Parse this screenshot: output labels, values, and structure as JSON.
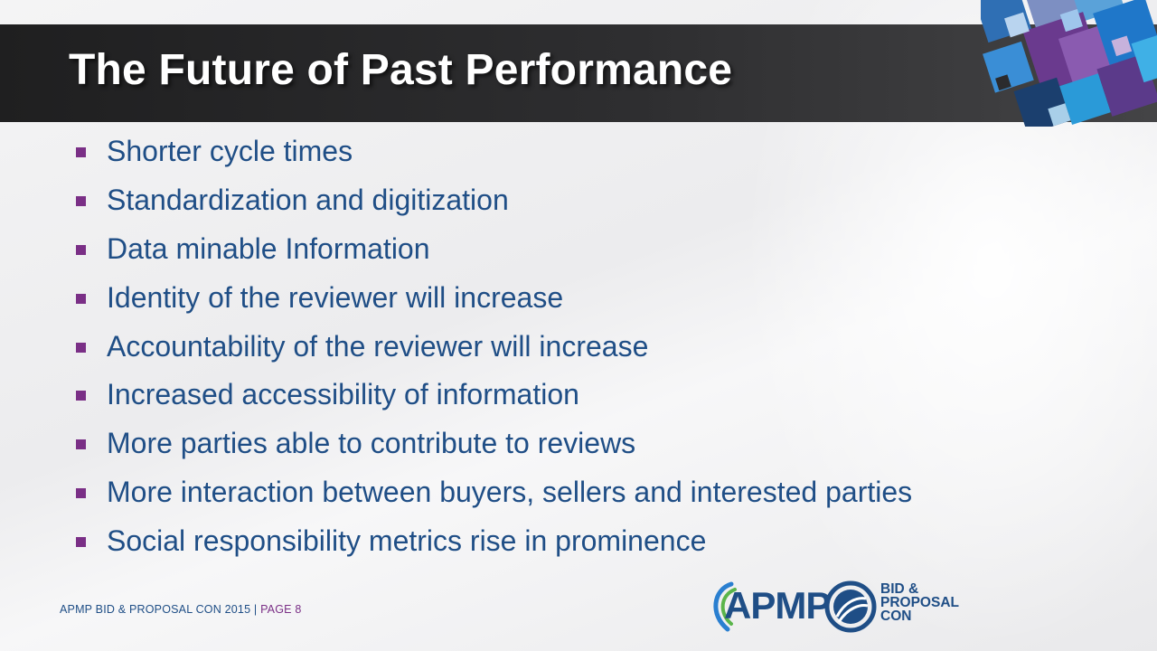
{
  "slide": {
    "title": "The Future of Past Performance",
    "bullets": [
      "Shorter cycle times",
      "Standardization and digitization",
      "Data minable Information",
      "Identity of the reviewer will increase",
      "Accountability of the reviewer will increase",
      "Increased accessibility of information",
      "More parties able to contribute to reviews",
      "More interaction between buyers, sellers and interested parties",
      "Social responsibility metrics rise in prominence"
    ]
  },
  "footer": {
    "event": "APMP BID & PROPOSAL CON 2015",
    "separator": "|",
    "page": "PAGE 8"
  },
  "logos": {
    "apmp": "APMP",
    "bid_line1": "BID &",
    "bid_line2": "PROPOSAL",
    "bid_line3": "CON"
  },
  "icons": {
    "bullet_marker": "square-bullet-icon",
    "apmp_logo": "apmp-logo-icon",
    "bid_proposal_logo": "bid-proposal-con-logo-icon",
    "decoration": "mosaic-squares-decoration"
  },
  "colors": {
    "title_bar": "#2a2a2b",
    "title_text": "#ffffff",
    "body_text": "#1f4e86",
    "bullet": "#7a2f86",
    "accent_blue": "#2a7fd0",
    "accent_purple": "#6a3a8e"
  }
}
